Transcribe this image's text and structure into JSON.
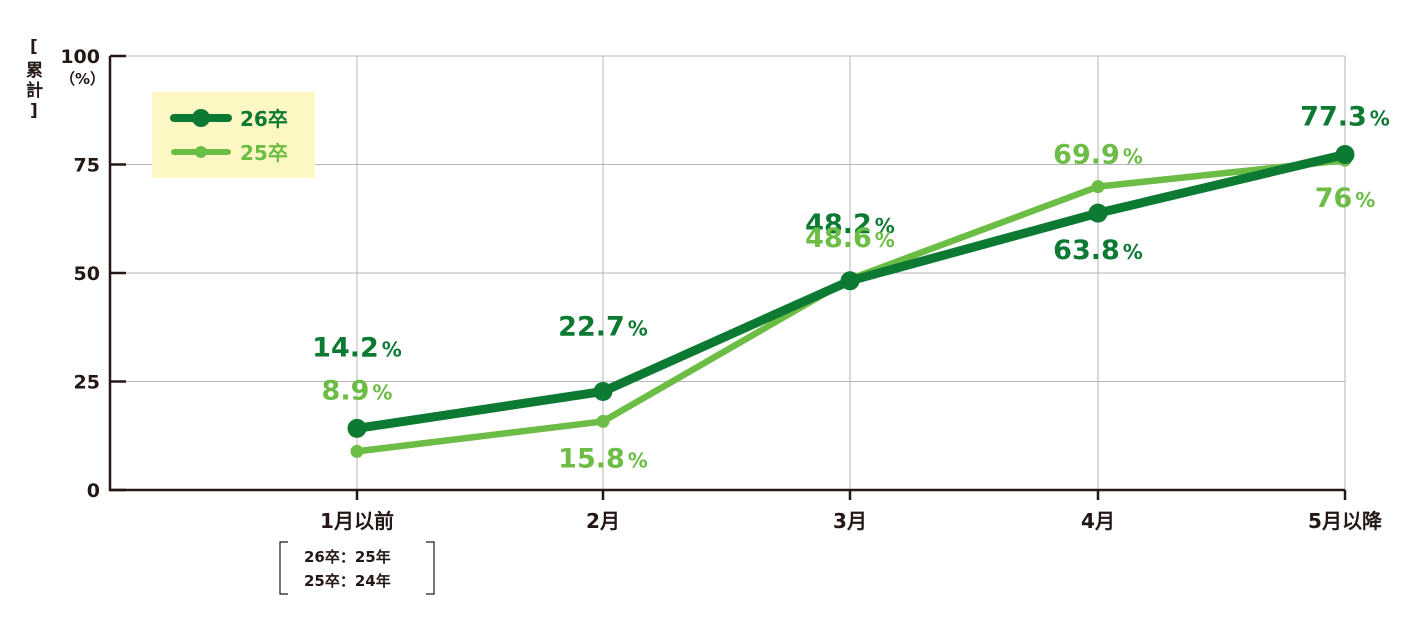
{
  "chart_data": {
    "type": "line",
    "categories": [
      "1月以前",
      "2月",
      "3月",
      "4月",
      "5月以降"
    ],
    "series": [
      {
        "name": "26卒",
        "values": [
          14.2,
          22.7,
          48.2,
          63.8,
          77.3
        ],
        "labels": [
          "14.2",
          "22.7",
          "48.2",
          "63.8",
          "77.3"
        ],
        "color": "#0d7a33"
      },
      {
        "name": "25卒",
        "values": [
          8.9,
          15.8,
          48.6,
          69.9,
          76
        ],
        "labels": [
          "8.9",
          "15.8",
          "48.6",
          "69.9",
          "76"
        ],
        "color": "#6cbd45"
      }
    ],
    "ylabel": "累計",
    "unit": "（%）",
    "percent_sign": "%",
    "ylim": [
      0,
      100
    ],
    "yticks": [
      0,
      25,
      50,
      75,
      100
    ],
    "grid": true,
    "legend": "top-left",
    "legend_bg": "#fdf7c3",
    "note": [
      "26卒：25年",
      "25卒：24年"
    ]
  }
}
